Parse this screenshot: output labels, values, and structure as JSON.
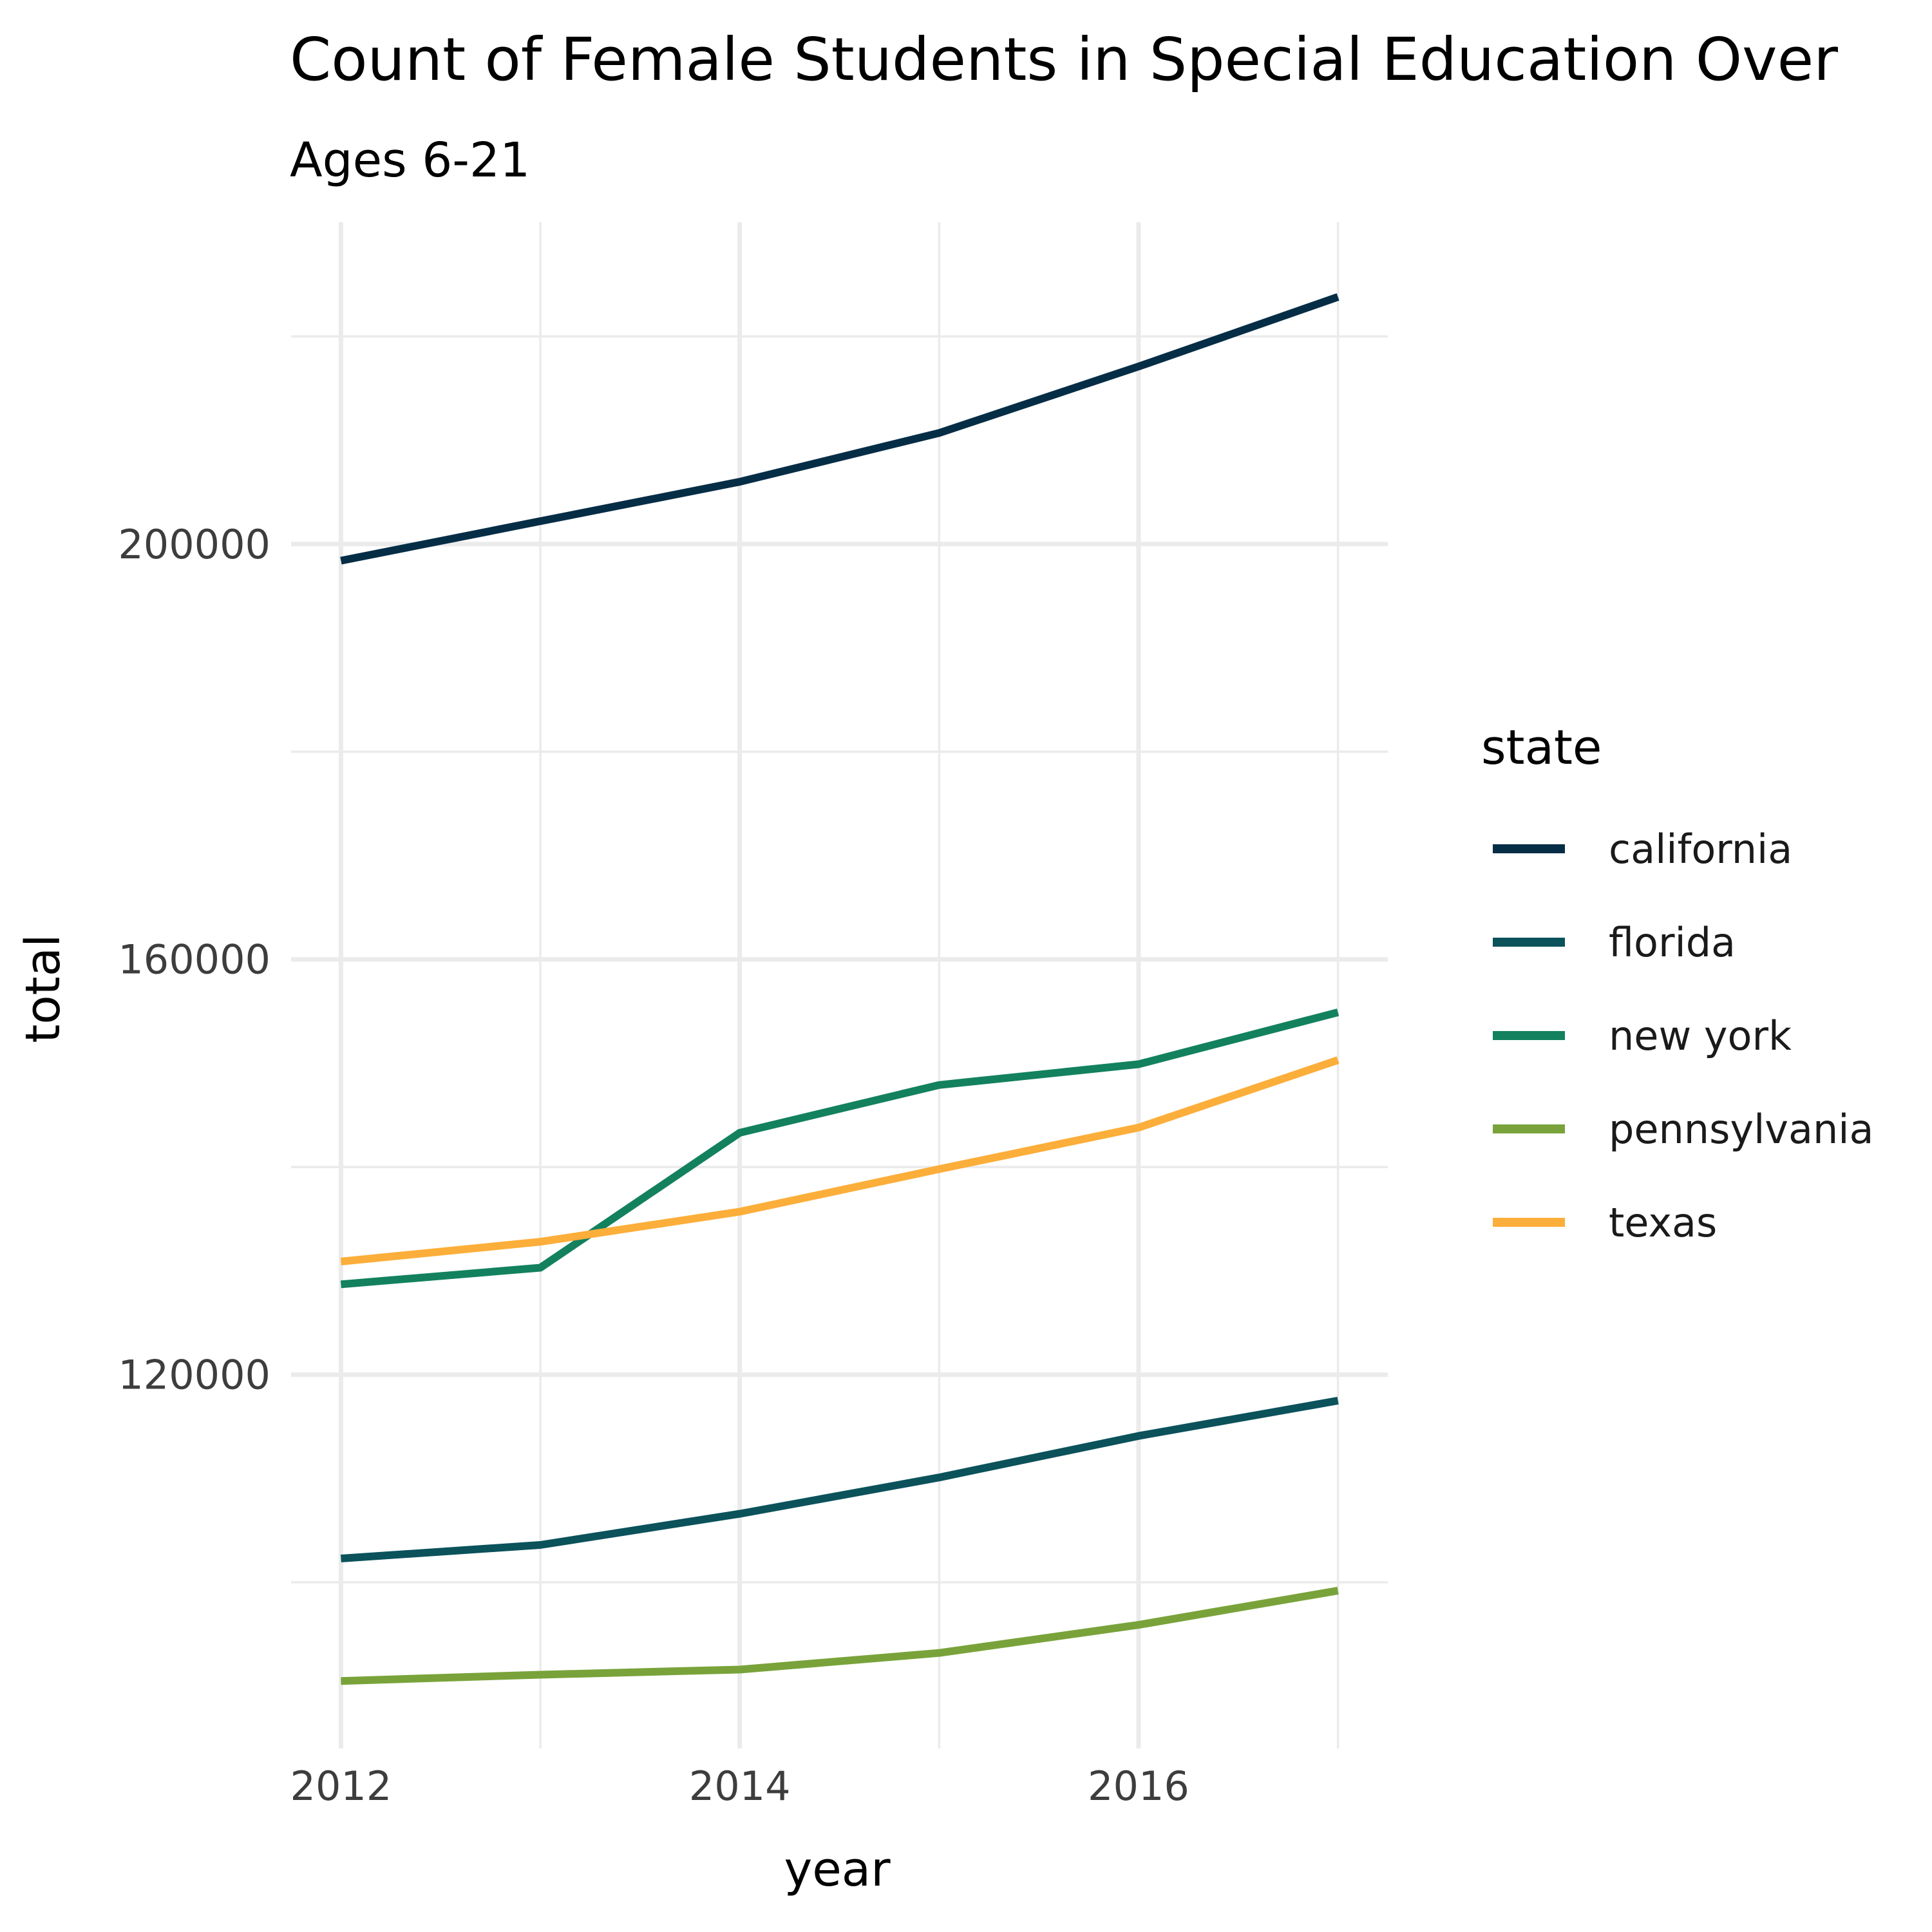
{
  "chart_data": {
    "type": "line",
    "title": "Count of Female Students in Special Education Over",
    "subtitle": "Ages 6-21",
    "xlabel": "year",
    "ylabel": "total",
    "x": [
      2012,
      2013,
      2014,
      2015,
      2016,
      2017
    ],
    "x_ticks": [
      "2012",
      "2014",
      "2016"
    ],
    "y_ticks": [
      "120000",
      "160000",
      "200000"
    ],
    "xlim": [
      2011.75,
      2017.25
    ],
    "ylim": [
      84000,
      231000
    ],
    "grid": true,
    "legend": {
      "title": "state",
      "placement": "right"
    },
    "series": [
      {
        "name": "california",
        "color": "#062D46",
        "values": [
          198400,
          202200,
          206000,
          210700,
          217100,
          223800
        ]
      },
      {
        "name": "florida",
        "color": "#0B525B",
        "values": [
          102300,
          103600,
          106600,
          110100,
          114100,
          117500
        ]
      },
      {
        "name": "new york",
        "color": "#13815E",
        "values": [
          128700,
          130300,
          143300,
          147900,
          149900,
          154900
        ]
      },
      {
        "name": "pennsylvania",
        "color": "#79A33A",
        "values": [
          90500,
          91100,
          91600,
          93200,
          95900,
          99200
        ]
      },
      {
        "name": "texas",
        "color": "#FCAE3A",
        "values": [
          130900,
          132800,
          135700,
          139800,
          143800,
          150300
        ]
      }
    ]
  }
}
